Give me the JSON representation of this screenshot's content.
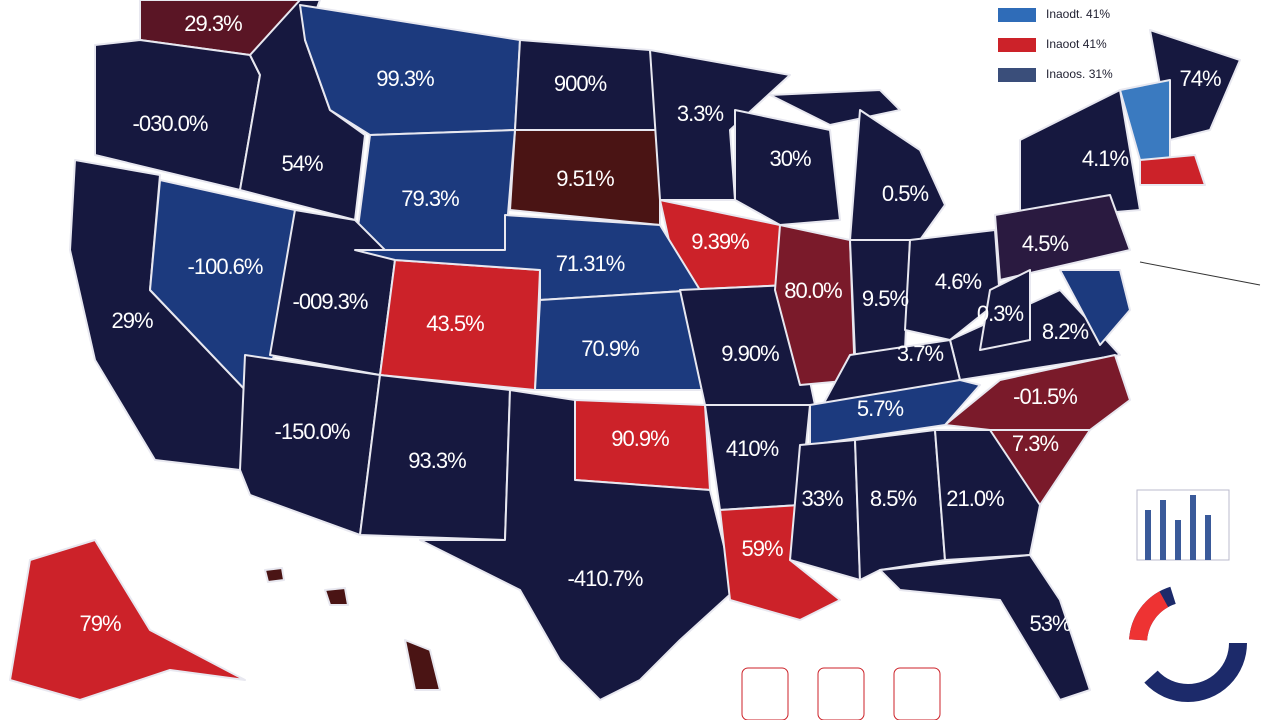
{
  "legend": [
    "Inaodt. 41%",
    "Inaoot 41%",
    "Inaoos. 31%"
  ],
  "labels": [
    "29.3%",
    "-030.0%",
    "54%",
    "99.3%",
    "900%",
    "9.51%",
    "79.3%",
    "3.3%",
    "30%",
    "0.5%",
    "4.1%",
    "74%",
    "-100.6%",
    "29%",
    "-009.3%",
    "43.5%",
    "71.31%",
    "9.39%",
    "80.0%",
    "9.5%",
    "4.6%",
    "4.5%",
    "0.3%",
    "8.2%",
    "70.9%",
    "9.90%",
    "3.7%",
    "5.7%",
    "-01.5%",
    "7.3%",
    "-150.0%",
    "93.3%",
    "90.9%",
    "410%",
    "-410.7%",
    "59%",
    "33%",
    "8.5%",
    "21.0%",
    "53%",
    "79%"
  ]
}
